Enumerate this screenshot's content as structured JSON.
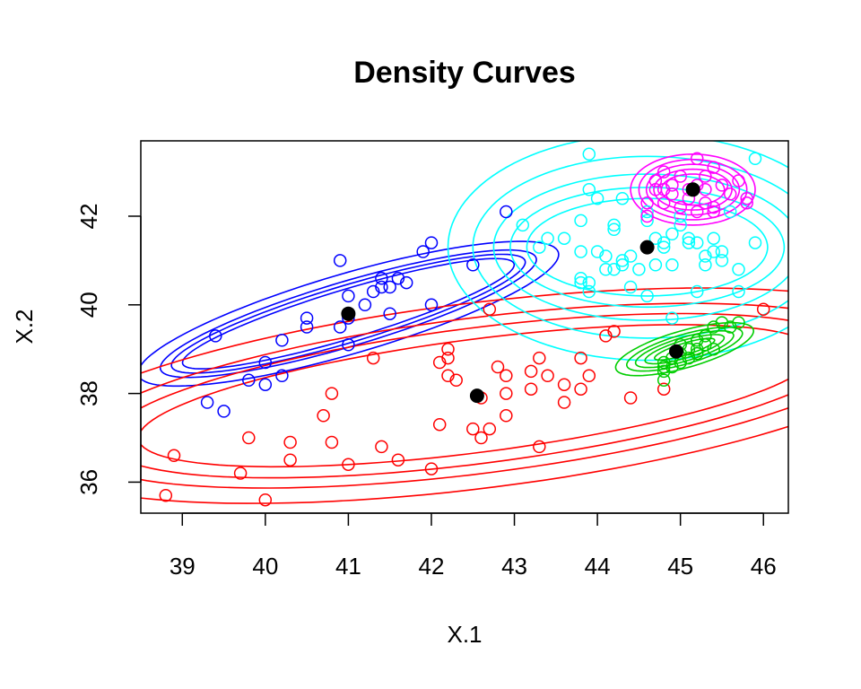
{
  "chart_data": {
    "type": "scatter",
    "title": "Density Curves",
    "xlabel": "X.1",
    "ylabel": "X.2",
    "xlim": [
      38.5,
      46.3
    ],
    "ylim": [
      35.3,
      43.7
    ],
    "x_ticks": [
      "39",
      "40",
      "41",
      "42",
      "43",
      "44",
      "45",
      "46"
    ],
    "y_ticks": [
      "36",
      "38",
      "40",
      "42"
    ],
    "grid": false,
    "legend": "none",
    "marker": "open-circle",
    "series": [
      {
        "color": "#0000FF",
        "points": [
          [
            39.4,
            39.3
          ],
          [
            39.3,
            37.8
          ],
          [
            39.5,
            37.6
          ],
          [
            39.8,
            38.3
          ],
          [
            40.0,
            38.7
          ],
          [
            40.0,
            38.2
          ],
          [
            40.2,
            38.4
          ],
          [
            40.2,
            39.2
          ],
          [
            40.5,
            39.5
          ],
          [
            40.5,
            39.7
          ],
          [
            40.9,
            39.5
          ],
          [
            41.0,
            39.7
          ],
          [
            41.0,
            40.2
          ],
          [
            41.0,
            39.1
          ],
          [
            40.9,
            41.0
          ],
          [
            41.2,
            40.0
          ],
          [
            41.3,
            40.3
          ],
          [
            41.4,
            40.4
          ],
          [
            41.4,
            40.6
          ],
          [
            41.5,
            40.4
          ],
          [
            41.5,
            39.8
          ],
          [
            41.6,
            40.6
          ],
          [
            41.7,
            40.5
          ],
          [
            42.0,
            40.0
          ],
          [
            41.9,
            41.2
          ],
          [
            42.0,
            41.4
          ],
          [
            42.5,
            40.9
          ],
          [
            42.9,
            42.1
          ]
        ]
      },
      {
        "color": "#FF0000",
        "points": [
          [
            38.8,
            35.7
          ],
          [
            38.9,
            36.6
          ],
          [
            39.7,
            36.2
          ],
          [
            39.8,
            37.0
          ],
          [
            40.0,
            35.6
          ],
          [
            40.3,
            36.9
          ],
          [
            40.3,
            36.5
          ],
          [
            40.7,
            37.5
          ],
          [
            40.8,
            38.0
          ],
          [
            40.8,
            36.9
          ],
          [
            41.0,
            36.4
          ],
          [
            41.3,
            38.8
          ],
          [
            41.4,
            36.8
          ],
          [
            41.6,
            36.5
          ],
          [
            42.0,
            36.3
          ],
          [
            42.1,
            37.3
          ],
          [
            42.1,
            38.7
          ],
          [
            42.2,
            38.8
          ],
          [
            42.2,
            39.0
          ],
          [
            42.2,
            38.4
          ],
          [
            42.3,
            38.3
          ],
          [
            42.5,
            37.2
          ],
          [
            42.6,
            37.0
          ],
          [
            42.6,
            37.9
          ],
          [
            42.7,
            37.2
          ],
          [
            42.7,
            39.9
          ],
          [
            42.8,
            38.6
          ],
          [
            42.9,
            38.4
          ],
          [
            42.9,
            38.0
          ],
          [
            42.9,
            37.5
          ],
          [
            43.2,
            38.5
          ],
          [
            43.2,
            38.1
          ],
          [
            43.3,
            38.8
          ],
          [
            43.3,
            36.8
          ],
          [
            43.4,
            38.4
          ],
          [
            43.6,
            37.8
          ],
          [
            43.6,
            38.2
          ],
          [
            43.8,
            38.8
          ],
          [
            43.8,
            38.1
          ],
          [
            43.9,
            38.4
          ],
          [
            44.1,
            39.3
          ],
          [
            44.2,
            39.4
          ],
          [
            44.4,
            37.9
          ],
          [
            44.8,
            38.1
          ],
          [
            46.0,
            39.9
          ]
        ]
      },
      {
        "color": "#00FFFF",
        "points": [
          [
            43.1,
            41.8
          ],
          [
            43.3,
            41.3
          ],
          [
            43.4,
            41.5
          ],
          [
            43.6,
            41.5
          ],
          [
            43.8,
            41.9
          ],
          [
            43.8,
            41.2
          ],
          [
            43.8,
            40.6
          ],
          [
            43.8,
            40.5
          ],
          [
            43.9,
            40.5
          ],
          [
            43.9,
            40.3
          ],
          [
            43.9,
            42.6
          ],
          [
            44.0,
            42.4
          ],
          [
            43.9,
            43.4
          ],
          [
            44.0,
            41.2
          ],
          [
            44.1,
            40.8
          ],
          [
            44.1,
            41.1
          ],
          [
            44.2,
            41.7
          ],
          [
            44.2,
            41.8
          ],
          [
            44.2,
            40.8
          ],
          [
            44.3,
            41.0
          ],
          [
            44.3,
            40.9
          ],
          [
            44.3,
            42.4
          ],
          [
            44.4,
            41.1
          ],
          [
            44.4,
            40.4
          ],
          [
            44.5,
            40.8
          ],
          [
            44.6,
            40.2
          ],
          [
            44.6,
            42.1
          ],
          [
            44.6,
            41.9
          ],
          [
            44.7,
            40.9
          ],
          [
            44.7,
            41.5
          ],
          [
            44.8,
            41.4
          ],
          [
            44.8,
            41.3
          ],
          [
            44.9,
            41.6
          ],
          [
            44.9,
            40.9
          ],
          [
            44.9,
            39.7
          ],
          [
            45.0,
            41.8
          ],
          [
            45.0,
            42.0
          ],
          [
            45.1,
            41.5
          ],
          [
            45.1,
            41.4
          ],
          [
            45.2,
            41.4
          ],
          [
            45.2,
            40.3
          ],
          [
            45.3,
            41.1
          ],
          [
            45.3,
            40.9
          ],
          [
            45.4,
            41.2
          ],
          [
            45.4,
            41.5
          ],
          [
            45.5,
            41.0
          ],
          [
            45.5,
            41.2
          ],
          [
            45.6,
            42.1
          ],
          [
            45.7,
            40.8
          ],
          [
            45.7,
            40.3
          ],
          [
            45.8,
            42.4
          ],
          [
            45.9,
            43.3
          ],
          [
            45.9,
            41.4
          ]
        ]
      },
      {
        "color": "#FF00FF",
        "points": [
          [
            44.6,
            42.3
          ],
          [
            44.6,
            42.0
          ],
          [
            44.7,
            42.6
          ],
          [
            44.7,
            42.8
          ],
          [
            44.8,
            42.6
          ],
          [
            44.8,
            43.0
          ],
          [
            44.8,
            42.3
          ],
          [
            44.9,
            42.7
          ],
          [
            44.9,
            42.5
          ],
          [
            45.0,
            42.2
          ],
          [
            45.0,
            42.9
          ],
          [
            45.1,
            42.4
          ],
          [
            45.1,
            42.6
          ],
          [
            45.2,
            42.7
          ],
          [
            45.2,
            43.3
          ],
          [
            45.2,
            42.1
          ],
          [
            45.3,
            42.6
          ],
          [
            45.3,
            42.3
          ],
          [
            45.3,
            42.9
          ],
          [
            45.4,
            42.2
          ],
          [
            45.4,
            42.1
          ],
          [
            45.4,
            43.1
          ],
          [
            45.5,
            42.7
          ],
          [
            45.6,
            42.5
          ],
          [
            45.7,
            42.8
          ],
          [
            45.8,
            42.3
          ],
          [
            45.8,
            42.4
          ]
        ]
      },
      {
        "color": "#00CD00",
        "points": [
          [
            44.8,
            38.6
          ],
          [
            44.8,
            38.7
          ],
          [
            44.8,
            38.5
          ],
          [
            44.8,
            38.3
          ],
          [
            44.9,
            38.6
          ],
          [
            44.9,
            38.8
          ],
          [
            45.0,
            38.7
          ],
          [
            45.0,
            39.1
          ],
          [
            45.0,
            38.9
          ],
          [
            45.1,
            39.0
          ],
          [
            45.1,
            38.8
          ],
          [
            45.2,
            39.0
          ],
          [
            45.2,
            38.9
          ],
          [
            45.2,
            39.2
          ],
          [
            45.3,
            39.1
          ],
          [
            45.3,
            39.3
          ],
          [
            45.4,
            39.5
          ],
          [
            45.4,
            39.0
          ],
          [
            45.5,
            39.6
          ],
          [
            45.6,
            39.5
          ],
          [
            45.7,
            39.6
          ]
        ]
      }
    ],
    "centers": [
      {
        "color": "#000000",
        "x": 41.0,
        "y": 39.8
      },
      {
        "color": "#000000",
        "x": 42.55,
        "y": 37.95
      },
      {
        "color": "#000000",
        "x": 44.6,
        "y": 41.3
      },
      {
        "color": "#000000",
        "x": 45.15,
        "y": 42.6
      },
      {
        "color": "#000000",
        "x": 44.95,
        "y": 38.95
      }
    ],
    "contours": [
      {
        "color": "#0000FF",
        "cx": 41.0,
        "cy": 39.8,
        "angle_deg": 30.5,
        "a": [
          2.9,
          2.6,
          2.45,
          2.3
        ],
        "b": [
          0.82,
          0.66,
          0.58,
          0.5
        ]
      },
      {
        "color": "#FF0000",
        "cx": 42.55,
        "cy": 37.95,
        "angle_deg": 14.5,
        "a": [
          5.6,
          5.0,
          4.6,
          4.2
        ],
        "b": [
          2.05,
          1.72,
          1.5,
          1.25
        ]
      },
      {
        "color": "#00FFFF",
        "cx": 44.6,
        "cy": 41.3,
        "angle_deg": 0,
        "a": [
          2.4,
          2.1,
          1.85,
          1.65,
          1.45
        ],
        "b": [
          2.55,
          2.05,
          1.65,
          1.35,
          1.1
        ]
      },
      {
        "color": "#FF00FF",
        "cx": 45.15,
        "cy": 42.6,
        "angle_deg": 0,
        "a": [
          0.75,
          0.65,
          0.56,
          0.47,
          0.38
        ],
        "b": [
          0.8,
          0.68,
          0.57,
          0.46,
          0.35
        ]
      },
      {
        "color": "#00CD00",
        "cx": 45.05,
        "cy": 39.0,
        "angle_deg": 32,
        "a": [
          0.95,
          0.8,
          0.68,
          0.55,
          0.42
        ],
        "b": [
          0.38,
          0.3,
          0.24,
          0.18,
          0.12
        ]
      }
    ]
  }
}
